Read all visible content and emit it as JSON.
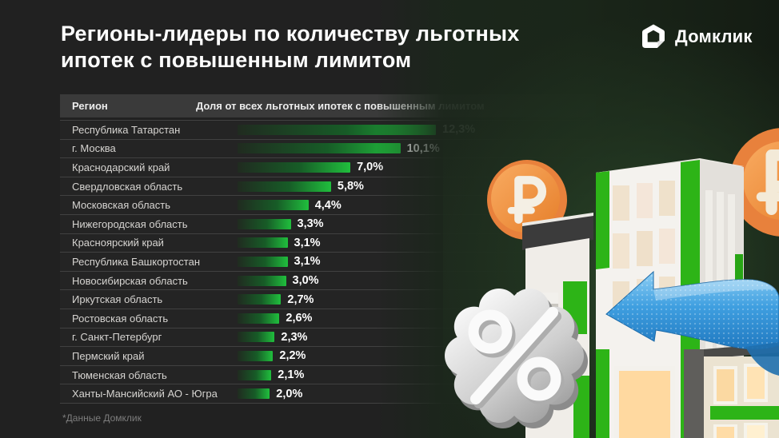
{
  "page": {
    "title_line1": "Регионы-лидеры по количеству льготных",
    "title_line2": "ипотек с повышенным лимитом",
    "logo_text": "Домклик",
    "footnote": "*Данные Домклик"
  },
  "table": {
    "region_header": "Регион",
    "share_header": "Доля от всех льготных ипотек с повышенным лимитом"
  },
  "chart_data": {
    "type": "bar",
    "orientation": "horizontal",
    "title": "Регионы-лидеры по количеству льготных ипотек с повышенным лимитом",
    "categories": [
      "Республика Татарстан",
      "г. Москва",
      "Краснодарский край",
      "Свердловская область",
      "Московская область",
      "Нижегородская область",
      "Красноярский край",
      "Республика Башкортостан",
      "Новосибирская область",
      "Иркутская область",
      "Ростовская область",
      "г. Санкт-Петербург",
      "Пермский край",
      "Тюменская область",
      "Ханты-Мансийский АО - Югра"
    ],
    "values": [
      12.3,
      10.1,
      7.0,
      5.8,
      4.4,
      3.3,
      3.1,
      3.1,
      3.0,
      2.7,
      2.6,
      2.3,
      2.2,
      2.1,
      2.0
    ],
    "value_labels": [
      "12,3%",
      "10,1%",
      "7,0%",
      "5,8%",
      "4,4%",
      "3,3%",
      "3,1%",
      "3,1%",
      "3,0%",
      "2,7%",
      "2,6%",
      "2,3%",
      "2,2%",
      "2,1%",
      "2,0%"
    ],
    "xlim": [
      0,
      12.3
    ],
    "grid": "row-separators",
    "legend": null,
    "source_note": "*Данные Домклик"
  },
  "colors": {
    "background": "#212121",
    "header_row": "#3a3a3a",
    "bar_green_bright": "#20bf3d",
    "bar_green_dark": "#202b20",
    "building_green": "#2db417",
    "coin_orange": "#f0924a",
    "arrow_blue": "#3f9fe0",
    "badge_silver": "#c9c9c9"
  }
}
